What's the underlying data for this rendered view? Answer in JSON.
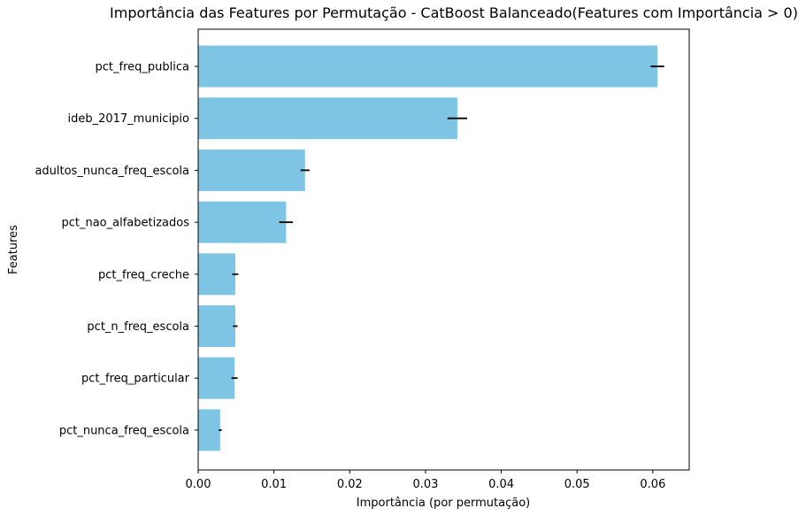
{
  "chart_data": {
    "type": "bar",
    "orientation": "horizontal",
    "title": "Importância das Features por Permutação - CatBoost Balanceado(Features com Importância > 0)",
    "xlabel": "Importância (por permutação)",
    "ylabel": "Features",
    "categories": [
      "pct_freq_publica",
      "ideb_2017_municipio",
      "adultos_nunca_freq_escola",
      "pct_nao_alfabetizados",
      "pct_freq_creche",
      "pct_n_freq_escola",
      "pct_freq_particular",
      "pct_nunca_freq_escola"
    ],
    "values": [
      0.0606,
      0.0342,
      0.0141,
      0.0116,
      0.0049,
      0.0049,
      0.0048,
      0.0029
    ],
    "errors": [
      0.0009,
      0.0013,
      0.0006,
      0.0009,
      0.0004,
      0.0003,
      0.0004,
      0.0002
    ],
    "xlim": [
      0,
      0.0648
    ],
    "xticks": [
      0.0,
      0.01,
      0.02,
      0.03,
      0.04,
      0.05,
      0.06
    ],
    "xtick_labels": [
      "0.00",
      "0.01",
      "0.02",
      "0.03",
      "0.04",
      "0.05",
      "0.06"
    ],
    "grid": false,
    "colors": {
      "bar": "#7ec5e5",
      "error": "#000000",
      "axis": "#000000"
    }
  }
}
